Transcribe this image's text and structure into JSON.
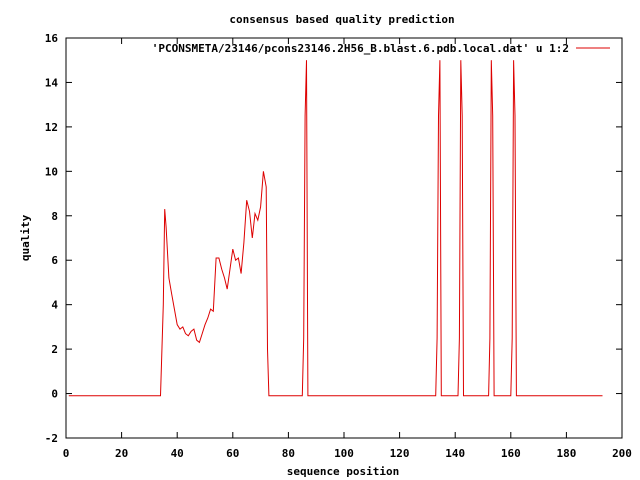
{
  "chart_data": {
    "type": "line",
    "title": "consensus based quality prediction",
    "xlabel": "sequence position",
    "ylabel": "quality",
    "xlim": [
      0,
      200
    ],
    "ylim": [
      -2,
      16
    ],
    "x_ticks": [
      "0",
      "20",
      "40",
      "60",
      "80",
      "100",
      "120",
      "140",
      "160",
      "180",
      "200"
    ],
    "y_ticks": [
      "-2",
      "0",
      "2",
      "4",
      "6",
      "8",
      "10",
      "12",
      "14",
      "16"
    ],
    "legend_position": "top-right",
    "grid": false,
    "series": [
      {
        "name": "'PCONSMETA/23146/pcons23146.2H56_B.blast.6.pdb.local.dat' u 1:2",
        "color": "#dd0000",
        "x": [
          1,
          34,
          35,
          35.5,
          36,
          37,
          38,
          39,
          40,
          41,
          42,
          43,
          44,
          45,
          46,
          47,
          48,
          49,
          50,
          51,
          52,
          53,
          54,
          55,
          56,
          57,
          58,
          59,
          60,
          61,
          62,
          63,
          64,
          65,
          66,
          67,
          68,
          69,
          70,
          71,
          72,
          72.5,
          73,
          85,
          85.5,
          86,
          86.5,
          87,
          133,
          133.5,
          134,
          134.5,
          135,
          141,
          141.5,
          142,
          142.5,
          143,
          152,
          152.5,
          153,
          153.5,
          154,
          160,
          160.5,
          161,
          161.5,
          162,
          193
        ],
        "y": [
          -0.1,
          -0.1,
          4,
          8.3,
          7.5,
          5.2,
          4.5,
          3.8,
          3.1,
          2.9,
          3.0,
          2.7,
          2.6,
          2.8,
          2.9,
          2.4,
          2.3,
          2.7,
          3.1,
          3.4,
          3.8,
          3.7,
          6.1,
          6.1,
          5.6,
          5.2,
          4.7,
          5.6,
          6.5,
          6.0,
          6.1,
          5.4,
          6.8,
          8.7,
          8.2,
          7.0,
          8.1,
          7.8,
          8.4,
          10.0,
          9.3,
          2.0,
          -0.1,
          -0.1,
          2.5,
          12.5,
          15.0,
          -0.1,
          -0.1,
          2.5,
          12.5,
          15.0,
          -0.1,
          -0.1,
          2.5,
          15.0,
          12.5,
          -0.1,
          -0.1,
          2.5,
          15.0,
          12.5,
          -0.1,
          -0.1,
          2.5,
          15.0,
          12.5,
          -0.1,
          -0.1
        ]
      }
    ]
  }
}
